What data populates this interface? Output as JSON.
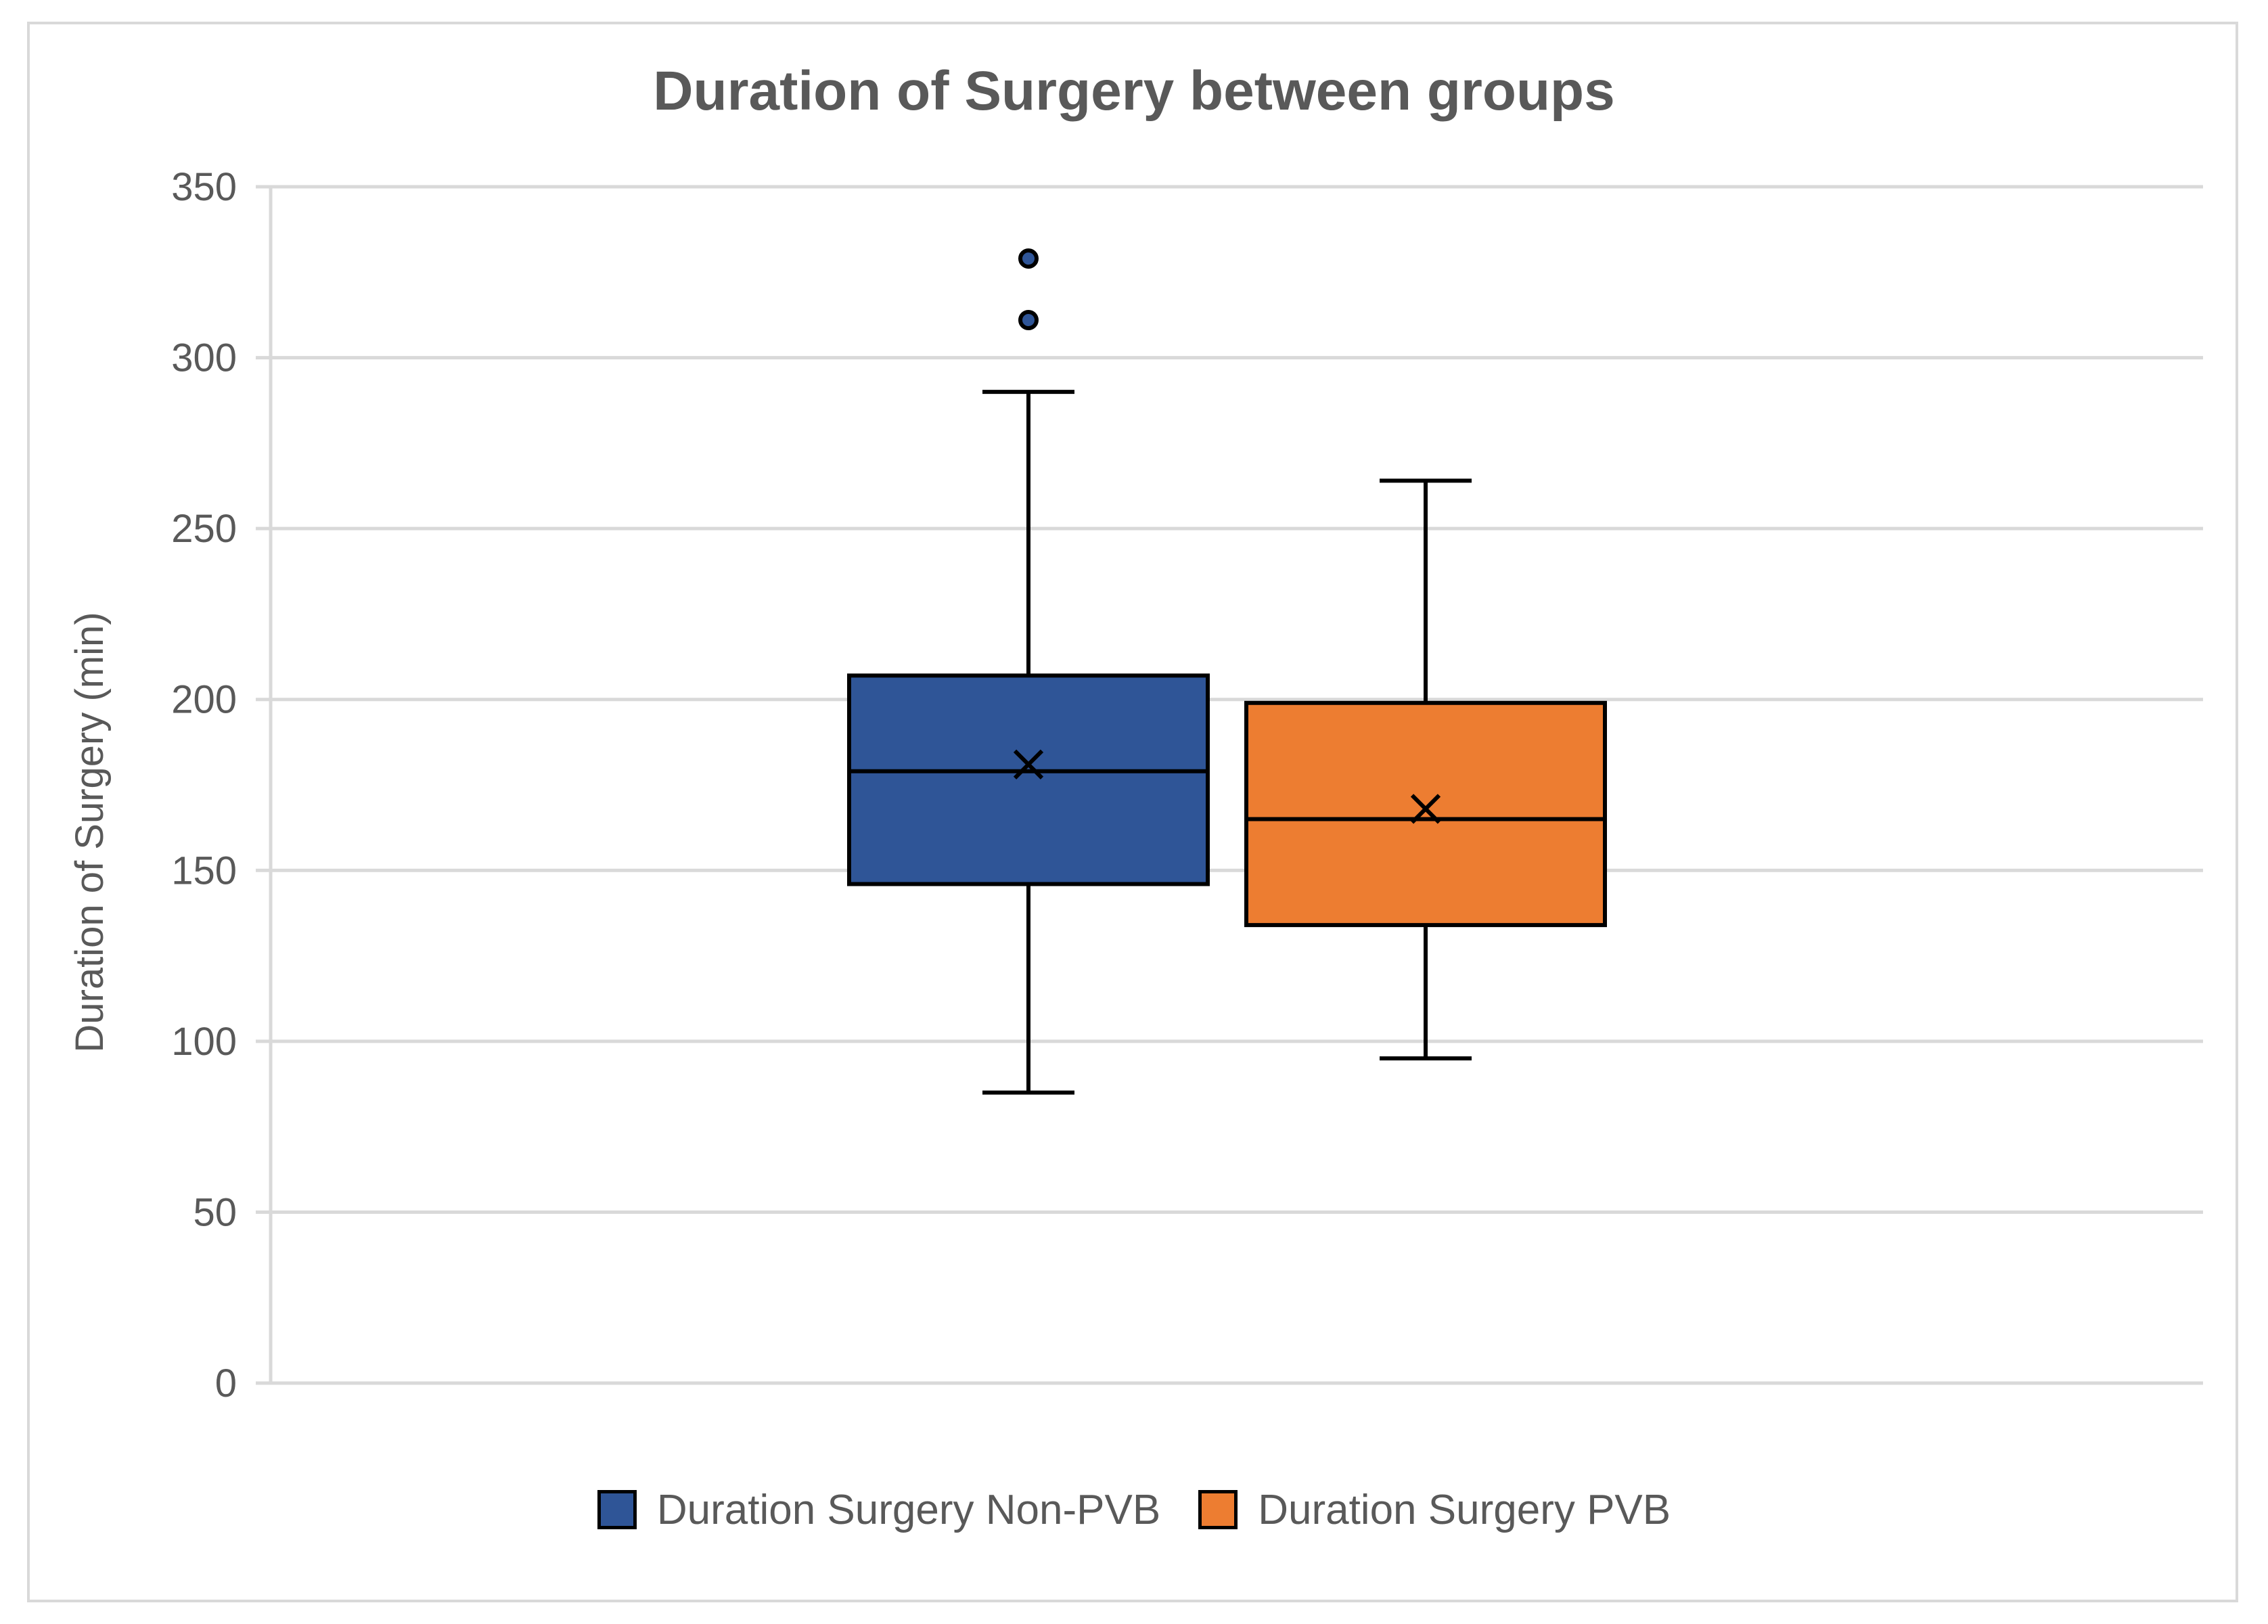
{
  "chart_data": {
    "type": "boxplot",
    "title": "Duration of Surgery between groups",
    "xlabel": "",
    "ylabel": "Duration of Surgery (min)",
    "ylim": [
      0,
      350
    ],
    "yticks": [
      0,
      50,
      100,
      150,
      200,
      250,
      300,
      350
    ],
    "grid": true,
    "legend_position": "bottom",
    "series": [
      {
        "name": "Duration Surgery Non-PVB",
        "color": "#2F5597",
        "min": 85,
        "q1": 146,
        "median": 179,
        "q3": 207,
        "max": 290,
        "mean": 181,
        "outliers": [
          311,
          329
        ]
      },
      {
        "name": "Duration Surgery PVB",
        "color": "#ED7D31",
        "min": 95,
        "q1": 134,
        "median": 165,
        "q3": 199,
        "max": 264,
        "mean": 168,
        "outliers": []
      }
    ]
  }
}
